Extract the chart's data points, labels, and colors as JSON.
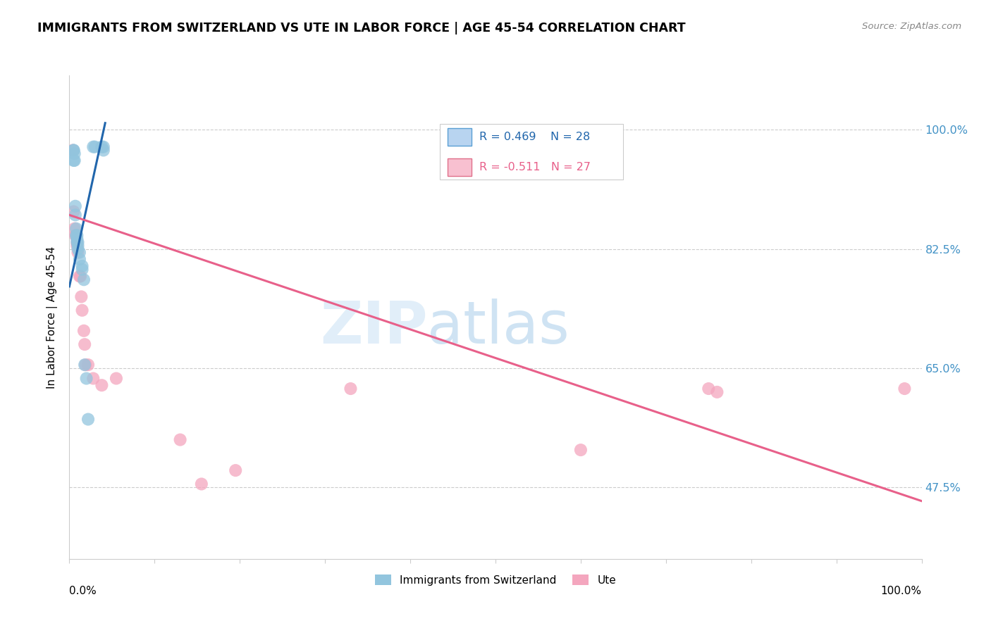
{
  "title": "IMMIGRANTS FROM SWITZERLAND VS UTE IN LABOR FORCE | AGE 45-54 CORRELATION CHART",
  "source": "Source: ZipAtlas.com",
  "ylabel": "In Labor Force | Age 45-54",
  "ytick_labels": [
    "100.0%",
    "82.5%",
    "65.0%",
    "47.5%"
  ],
  "ytick_values": [
    1.0,
    0.825,
    0.65,
    0.475
  ],
  "watermark_zip": "ZIP",
  "watermark_atlas": "atlas",
  "legend_r_blue": "R = 0.469",
  "legend_n_blue": "N = 28",
  "legend_r_pink": "R = -0.511",
  "legend_n_pink": "N = 27",
  "blue_color": "#92c5de",
  "pink_color": "#f4a6be",
  "blue_line_color": "#2166ac",
  "pink_line_color": "#e8608a",
  "swiss_scatter_x": [
    0.005,
    0.005,
    0.005,
    0.006,
    0.006,
    0.007,
    0.007,
    0.008,
    0.008,
    0.009,
    0.009,
    0.009,
    0.01,
    0.01,
    0.01,
    0.012,
    0.012,
    0.015,
    0.015,
    0.017,
    0.018,
    0.02,
    0.022,
    0.028,
    0.03,
    0.038,
    0.04,
    0.04
  ],
  "swiss_scatter_y": [
    0.97,
    0.97,
    0.955,
    0.965,
    0.955,
    0.888,
    0.875,
    0.855,
    0.845,
    0.845,
    0.84,
    0.835,
    0.835,
    0.83,
    0.825,
    0.82,
    0.81,
    0.8,
    0.795,
    0.78,
    0.655,
    0.635,
    0.575,
    0.975,
    0.975,
    0.975,
    0.975,
    0.97
  ],
  "ute_scatter_x": [
    0.004,
    0.005,
    0.006,
    0.007,
    0.008,
    0.009,
    0.009,
    0.01,
    0.012,
    0.013,
    0.014,
    0.015,
    0.017,
    0.018,
    0.019,
    0.022,
    0.028,
    0.038,
    0.055,
    0.13,
    0.155,
    0.195,
    0.33,
    0.6,
    0.75,
    0.76,
    0.98
  ],
  "ute_scatter_y": [
    0.97,
    0.88,
    0.855,
    0.845,
    0.845,
    0.835,
    0.83,
    0.82,
    0.785,
    0.785,
    0.755,
    0.735,
    0.705,
    0.685,
    0.655,
    0.655,
    0.635,
    0.625,
    0.635,
    0.545,
    0.48,
    0.5,
    0.62,
    0.53,
    0.62,
    0.615,
    0.62
  ],
  "blue_trend_x": [
    0.0,
    0.042
  ],
  "blue_trend_y": [
    0.77,
    1.01
  ],
  "pink_trend_x": [
    0.0,
    1.0
  ],
  "pink_trend_y": [
    0.875,
    0.455
  ],
  "xlim": [
    0.0,
    1.0
  ],
  "ylim": [
    0.37,
    1.08
  ],
  "legend_swiss": "Immigrants from Switzerland",
  "legend_ute": "Ute"
}
